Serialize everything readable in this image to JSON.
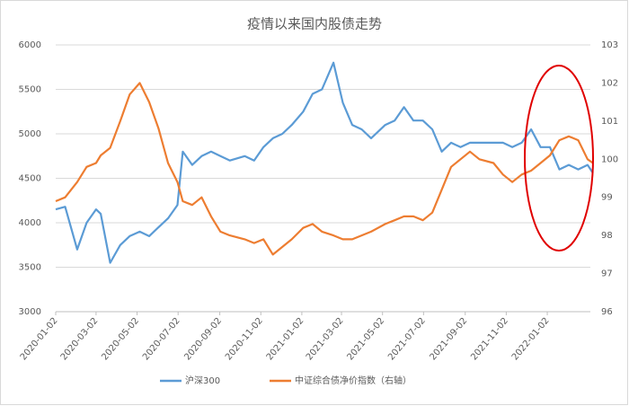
{
  "chart_data": {
    "type": "line",
    "title": "疫情以来国内股债走势",
    "x": [
      "2020-01-02",
      "2020-01-16",
      "2020-02-03",
      "2020-02-17",
      "2020-03-02",
      "2020-03-09",
      "2020-03-23",
      "2020-04-07",
      "2020-04-21",
      "2020-05-06",
      "2020-05-20",
      "2020-06-03",
      "2020-06-17",
      "2020-07-01",
      "2020-07-09",
      "2020-07-23",
      "2020-08-06",
      "2020-08-20",
      "2020-09-03",
      "2020-09-17",
      "2020-10-09",
      "2020-10-23",
      "2020-11-06",
      "2020-11-20",
      "2020-12-04",
      "2020-12-18",
      "2021-01-04",
      "2021-01-18",
      "2021-02-01",
      "2021-02-18",
      "2021-03-04",
      "2021-03-18",
      "2021-04-01",
      "2021-04-15",
      "2021-05-06",
      "2021-05-20",
      "2021-06-03",
      "2021-06-17",
      "2021-07-01",
      "2021-07-15",
      "2021-07-29",
      "2021-08-12",
      "2021-08-26",
      "2021-09-09",
      "2021-09-23",
      "2021-10-14",
      "2021-10-28",
      "2021-11-11",
      "2021-11-25",
      "2021-12-09",
      "2021-12-23",
      "2022-01-06",
      "2022-01-20",
      "2022-02-03",
      "2022-02-17",
      "2022-03-03",
      "2022-03-11"
    ],
    "series": [
      {
        "name": "沪深300",
        "color": "#5b9bd5",
        "values": [
          4150,
          4180,
          3700,
          4000,
          4150,
          4100,
          3550,
          3750,
          3850,
          3900,
          3850,
          3950,
          4050,
          4200,
          4800,
          4650,
          4750,
          4800,
          4750,
          4700,
          4750,
          4700,
          4850,
          4950,
          5000,
          5100,
          5250,
          5450,
          5500,
          5800,
          5350,
          5100,
          5050,
          4950,
          5100,
          5150,
          5300,
          5150,
          5150,
          5050,
          4800,
          4900,
          4850,
          4900,
          4900,
          4900,
          4900,
          4850,
          4900,
          5050,
          4850,
          4850,
          4600,
          4650,
          4600,
          4650,
          4560
        ]
      },
      {
        "name": "中证综合债净价指数（右轴）",
        "color": "#ed7d31",
        "axis": "y2",
        "values": [
          98.9,
          99.0,
          99.4,
          99.8,
          99.9,
          100.1,
          100.3,
          101.0,
          101.7,
          102.0,
          101.5,
          100.8,
          99.9,
          99.4,
          98.9,
          98.8,
          99.0,
          98.5,
          98.1,
          98.0,
          97.9,
          97.8,
          97.9,
          97.5,
          97.7,
          97.9,
          98.2,
          98.3,
          98.1,
          98.0,
          97.9,
          97.9,
          98.0,
          98.1,
          98.3,
          98.4,
          98.5,
          98.5,
          98.4,
          98.6,
          99.2,
          99.8,
          100.0,
          100.2,
          100.0,
          99.9,
          99.6,
          99.4,
          99.6,
          99.7,
          99.9,
          100.1,
          100.5,
          100.6,
          100.5,
          100.0,
          99.9
        ]
      }
    ],
    "ylim": [
      3000,
      6000
    ],
    "yticks": [
      3000,
      3500,
      4000,
      4500,
      5000,
      5500,
      6000
    ],
    "y2lim": [
      96,
      103
    ],
    "y2ticks": [
      96,
      97,
      98,
      99,
      100,
      101,
      102,
      103
    ],
    "xticks": [
      "2020-01-02",
      "2020-03-02",
      "2020-05-02",
      "2020-07-02",
      "2020-09-02",
      "2020-11-02",
      "2021-01-02",
      "2021-03-02",
      "2021-05-02",
      "2021-07-02",
      "2021-09-02",
      "2021-11-02",
      "2022-01-02"
    ],
    "grid": true
  }
}
